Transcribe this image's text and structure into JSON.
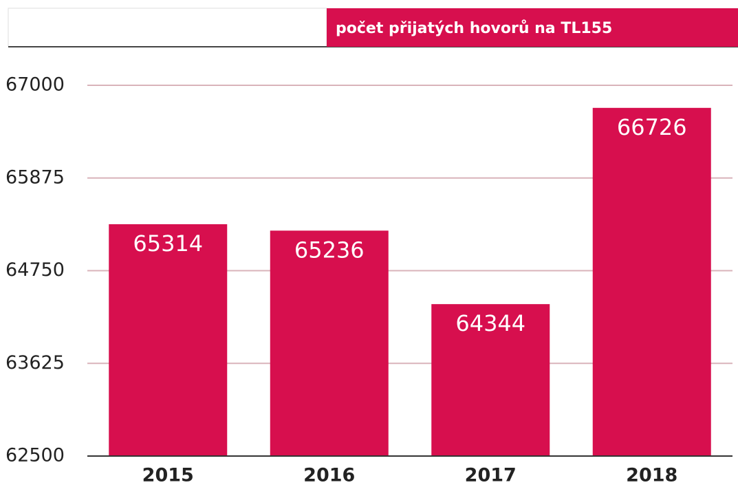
{
  "chart_data": {
    "type": "bar",
    "categories": [
      "2015",
      "2016",
      "2017",
      "2018"
    ],
    "series": [
      {
        "name": "počet přijatých hovorů na TL155",
        "color": "#d70f4e",
        "values": [
          65314,
          65236,
          64344,
          66726
        ]
      }
    ],
    "ylim": [
      62500,
      67000
    ],
    "yticks": [
      62500,
      63625,
      64750,
      65875,
      67000
    ],
    "grid": true
  }
}
